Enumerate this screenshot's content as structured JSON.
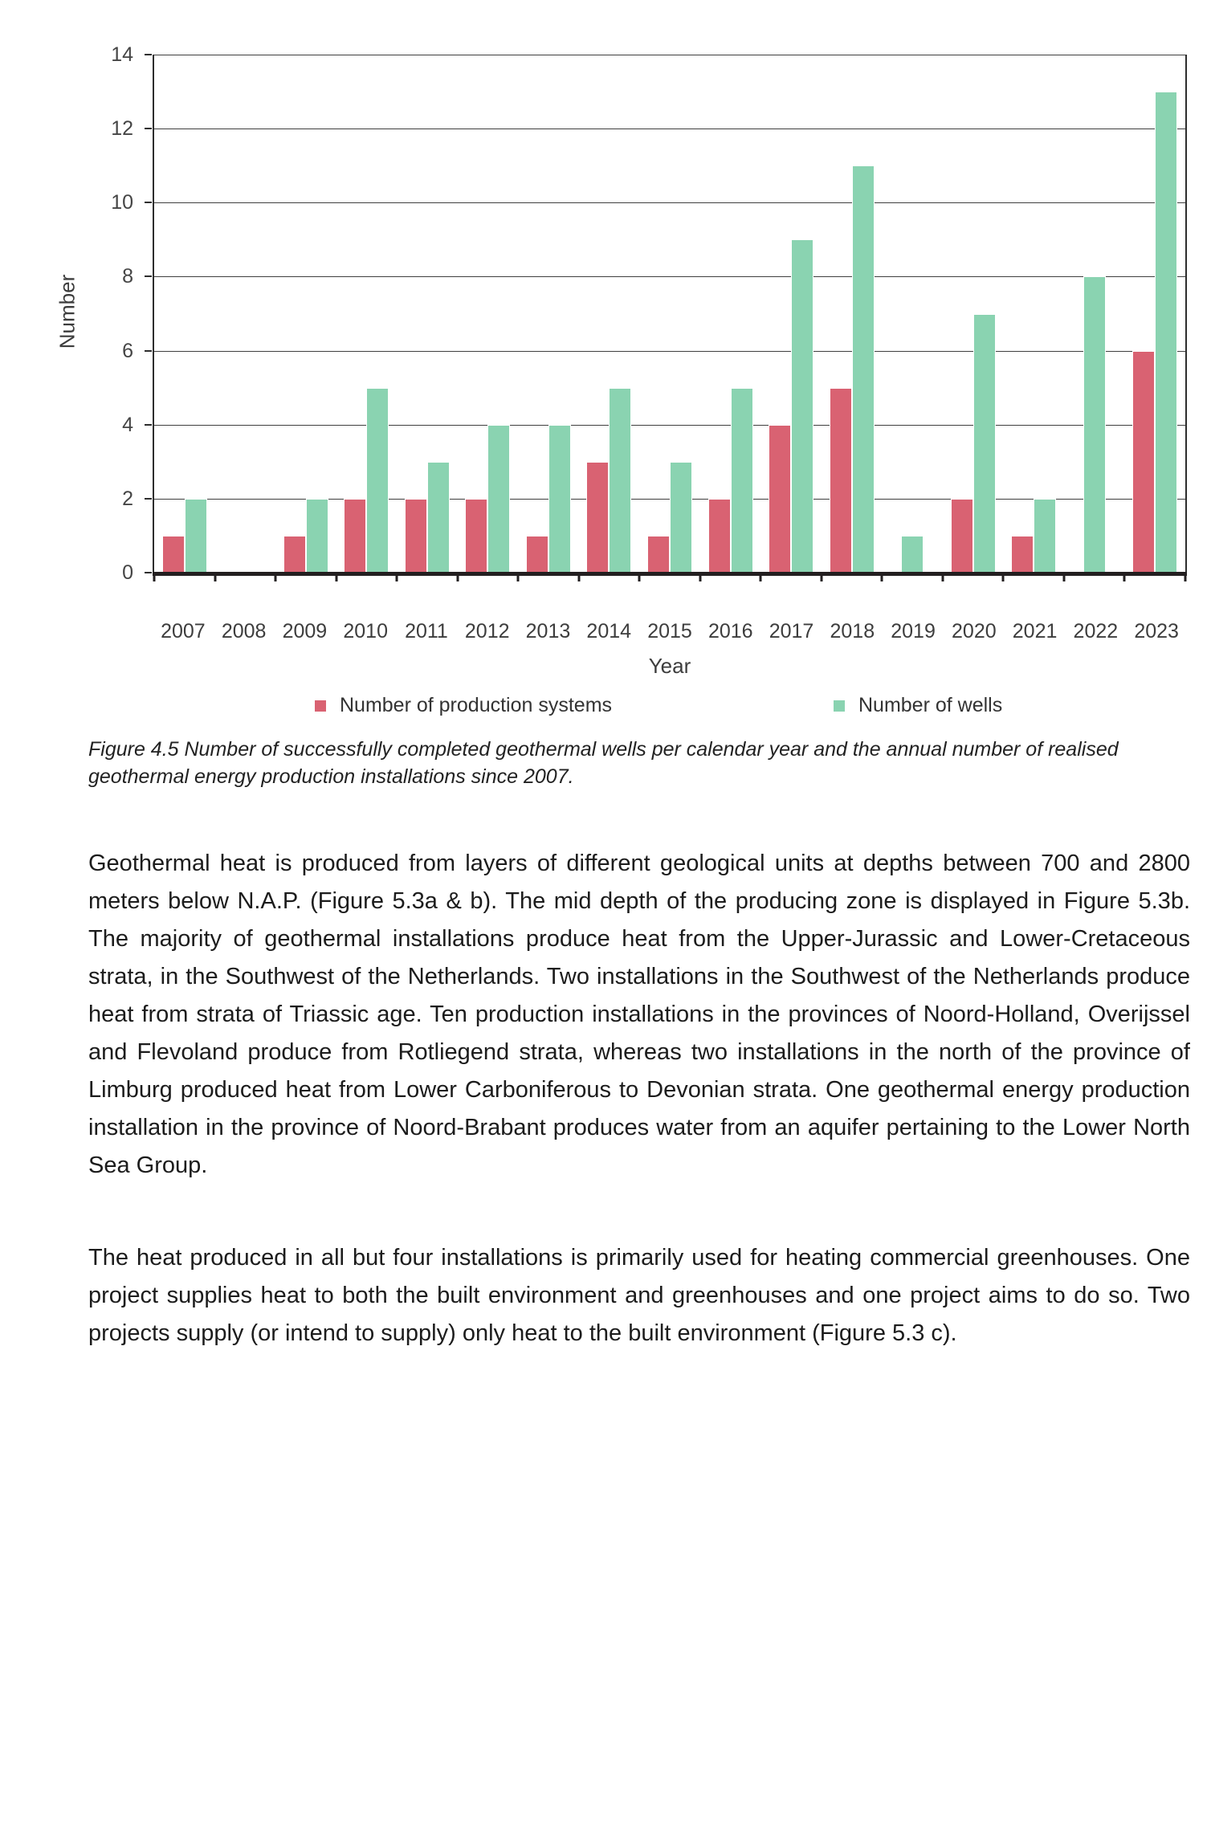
{
  "chart_data": {
    "type": "bar",
    "categories": [
      "2007",
      "2008",
      "2009",
      "2010",
      "2011",
      "2012",
      "2013",
      "2014",
      "2015",
      "2016",
      "2017",
      "2018",
      "2019",
      "2020",
      "2021",
      "2022",
      "2023"
    ],
    "series": [
      {
        "name": "Number of production systems",
        "color": "#d96272",
        "values": [
          1,
          0,
          1,
          2,
          2,
          2,
          1,
          3,
          1,
          2,
          4,
          5,
          0,
          2,
          1,
          0,
          6
        ]
      },
      {
        "name": "Number of wells",
        "color": "#8ad3b1",
        "values": [
          2,
          0,
          2,
          5,
          3,
          4,
          4,
          5,
          3,
          5,
          9,
          11,
          1,
          7,
          2,
          8,
          13
        ]
      }
    ],
    "title": "",
    "xlabel": "Year",
    "ylabel": "Number",
    "ylim": [
      0,
      14
    ],
    "yticks": [
      0,
      2,
      4,
      6,
      8,
      10,
      12,
      14
    ],
    "grid": true,
    "legend_position": "bottom"
  },
  "figure": {
    "caption": "Figure 4.5 Number of successfully completed geothermal wells per calendar year and the annual number of realised geothermal energy production installations since 2007."
  },
  "body": {
    "paragraph1": "Geothermal heat is produced from layers of different geological units at depths between 700 and 2800 meters below N.A.P. (Figure 5.3a & b). The mid depth of the producing zone is displayed in Figure 5.3b. The majority of geothermal installations produce heat from the Upper-Jurassic and Lower-Cretaceous strata, in the Southwest of the Netherlands. Two installations in the Southwest of the Netherlands produce heat from strata of Triassic age. Ten production installations in the provinces of Noord-Holland, Overijssel and Flevoland produce from Rotliegend strata, whereas two installations in the north of the province of Limburg produced heat from Lower Carboniferous to Devonian strata. One geothermal energy production installation in the province of Noord-Brabant produces water from an aquifer pertaining to the Lower North Sea Group.",
    "paragraph2": "The heat produced in all but four installations is primarily used for heating commercial greenhouses. One project supplies heat to both the built environment and greenhouses and one project aims to do so. Two projects supply (or intend to supply) only heat to the built environment (Figure 5.3 c)."
  }
}
